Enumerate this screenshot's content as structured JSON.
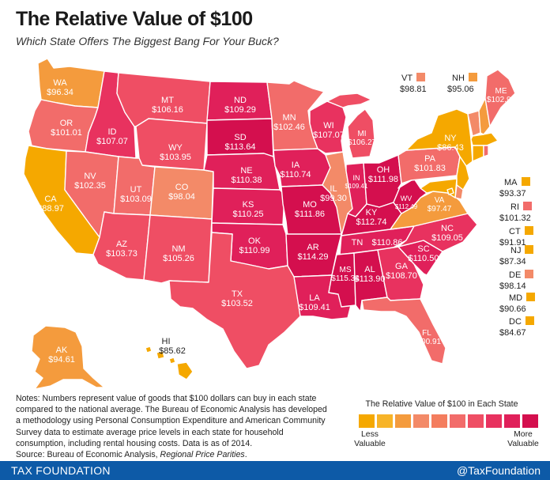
{
  "title": "The Relative Value of $100",
  "subtitle": "Which State Offers The Biggest Bang For Your Buck?",
  "colors": {
    "gold": "#f5a800",
    "orange": "#f49b3d",
    "salmon": "#f38a68",
    "coral": "#f26c6a",
    "rose": "#ef4e64",
    "pink": "#e8325f",
    "red": "#e0205a",
    "crimson": "#d40f4e",
    "footer": "#0d5aa7"
  },
  "states": {
    "WA": {
      "abbr": "WA",
      "value": "$96.34",
      "color": "#f49b3d"
    },
    "OR": {
      "abbr": "OR",
      "value": "$101.01",
      "color": "#f26c6a"
    },
    "CA": {
      "abbr": "CA",
      "value": "$88.97",
      "color": "#f5a800"
    },
    "ID": {
      "abbr": "ID",
      "value": "$107.07",
      "color": "#e8325f"
    },
    "NV": {
      "abbr": "NV",
      "value": "$102.35",
      "color": "#f26c6a"
    },
    "MT": {
      "abbr": "MT",
      "value": "$106.16",
      "color": "#ef4e64"
    },
    "WY": {
      "abbr": "WY",
      "value": "$103.95",
      "color": "#ef4e64"
    },
    "UT": {
      "abbr": "UT",
      "value": "$103.09",
      "color": "#f26c6a"
    },
    "AZ": {
      "abbr": "AZ",
      "value": "$103.73",
      "color": "#ef4e64"
    },
    "CO": {
      "abbr": "CO",
      "value": "$98.04",
      "color": "#f38a68"
    },
    "NM": {
      "abbr": "NM",
      "value": "$105.26",
      "color": "#ef4e64"
    },
    "ND": {
      "abbr": "ND",
      "value": "$109.29",
      "color": "#e0205a"
    },
    "SD": {
      "abbr": "SD",
      "value": "$113.64",
      "color": "#d40f4e"
    },
    "NE": {
      "abbr": "NE",
      "value": "$110.38",
      "color": "#e0205a"
    },
    "KS": {
      "abbr": "KS",
      "value": "$110.25",
      "color": "#e0205a"
    },
    "OK": {
      "abbr": "OK",
      "value": "$110.99",
      "color": "#e0205a"
    },
    "TX": {
      "abbr": "TX",
      "value": "$103.52",
      "color": "#ef4e64"
    },
    "MN": {
      "abbr": "MN",
      "value": "$102.46",
      "color": "#f26c6a"
    },
    "IA": {
      "abbr": "IA",
      "value": "$110.74",
      "color": "#e0205a"
    },
    "MO": {
      "abbr": "MO",
      "value": "$111.86",
      "color": "#d40f4e"
    },
    "AR": {
      "abbr": "AR",
      "value": "$114.29",
      "color": "#d40f4e"
    },
    "LA": {
      "abbr": "LA",
      "value": "$109.41",
      "color": "#e0205a"
    },
    "WI": {
      "abbr": "WI",
      "value": "$107.07",
      "color": "#e8325f"
    },
    "IL": {
      "abbr": "IL",
      "value": "$99.30",
      "color": "#f38a68"
    },
    "MI": {
      "abbr": "MI",
      "value": "$106.27",
      "color": "#ef4e64"
    },
    "IN": {
      "abbr": "IN",
      "value": "$109.41",
      "color": "#e0205a"
    },
    "OH": {
      "abbr": "OH",
      "value": "$111.98",
      "color": "#d40f4e"
    },
    "KY": {
      "abbr": "KY",
      "value": "$112.74",
      "color": "#d40f4e"
    },
    "TN": {
      "abbr": "TN",
      "value": "$110.86",
      "color": "#e0205a"
    },
    "MS": {
      "abbr": "MS",
      "value": "$115.34",
      "color": "#d40f4e"
    },
    "AL": {
      "abbr": "AL",
      "value": "$113.90",
      "color": "#d40f4e"
    },
    "GA": {
      "abbr": "GA",
      "value": "$108.70",
      "color": "#e8325f"
    },
    "FL": {
      "abbr": "FL",
      "value": "$100.91",
      "color": "#f26c6a"
    },
    "SC": {
      "abbr": "SC",
      "value": "$110.50",
      "color": "#e0205a"
    },
    "NC": {
      "abbr": "NC",
      "value": "$109.05",
      "color": "#e8325f"
    },
    "VA": {
      "abbr": "VA",
      "value": "$97.47",
      "color": "#f49b3d"
    },
    "WV": {
      "abbr": "WV",
      "value": "$112.49",
      "color": "#d40f4e"
    },
    "PA": {
      "abbr": "PA",
      "value": "$101.83",
      "color": "#f26c6a"
    },
    "NY": {
      "abbr": "NY",
      "value": "$86.43",
      "color": "#f5a800"
    },
    "ME": {
      "abbr": "ME",
      "value": "$102.99",
      "color": "#f26c6a"
    },
    "VT": {
      "abbr": "VT",
      "value": "$98.81",
      "color": "#f38a68"
    },
    "NH": {
      "abbr": "NH",
      "value": "$95.06",
      "color": "#f49b3d"
    },
    "MA": {
      "abbr": "MA",
      "value": "$93.37",
      "color": "#f5a800"
    },
    "RI": {
      "abbr": "RI",
      "value": "$101.32",
      "color": "#f26c6a"
    },
    "CT": {
      "abbr": "CT",
      "value": "$91.91",
      "color": "#f5a800"
    },
    "NJ": {
      "abbr": "NJ",
      "value": "$87.34",
      "color": "#f5a800"
    },
    "DE": {
      "abbr": "DE",
      "value": "$98.14",
      "color": "#f38a68"
    },
    "MD": {
      "abbr": "MD",
      "value": "$90.66",
      "color": "#f5a800"
    },
    "DC": {
      "abbr": "DC",
      "value": "$84.67",
      "color": "#f5a800"
    },
    "AK": {
      "abbr": "AK",
      "value": "$94.61",
      "color": "#f49b3d"
    },
    "HI": {
      "abbr": "HI",
      "value": "$85.62",
      "color": "#f5a800"
    }
  },
  "notes": {
    "text": "Notes: Numbers represent value of goods that $100 dollars can buy in each state compared to the national average. The Bureau of Economic Analysis has developed a methodology using Personal Consumption Expenditure and American Community Survey data to estimate average price levels in each state for household consumption, including rental housing costs. Data is as of 2014.",
    "source_prefix": "Source: Bureau of Economic Analysis, ",
    "source_italic": "Regional Price Parities",
    "source_suffix": "."
  },
  "legend": {
    "title": "The Relative Value of $100 in Each State",
    "low_label": "Less\nValuable",
    "high_label": "More\nValuable",
    "swatches": [
      "#f5a800",
      "#f7b428",
      "#f49b3d",
      "#f38a68",
      "#f47d5e",
      "#f26c6a",
      "#ef4e64",
      "#e8325f",
      "#e0205a",
      "#d40f4e"
    ]
  },
  "footer": {
    "left": "TAX FOUNDATION",
    "right": "@TaxFoundation"
  }
}
